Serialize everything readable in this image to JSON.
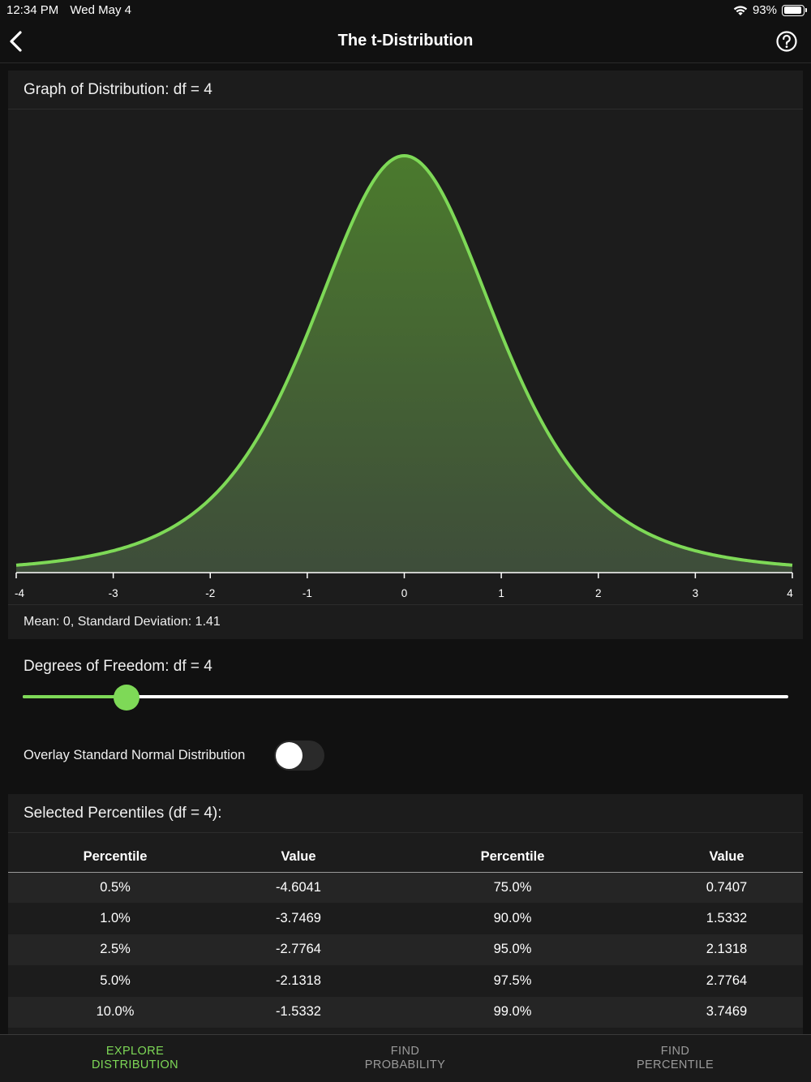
{
  "status_bar": {
    "time": "12:34 PM",
    "date": "Wed May 4",
    "battery_text": "93%",
    "battery_level": 0.93,
    "wifi_icon": "wifi-icon"
  },
  "nav": {
    "title": "The t-Distribution",
    "back_icon": "chevron-left-icon",
    "help_icon": "question-circle-icon"
  },
  "graph": {
    "header": "Graph of Distribution: df = 4",
    "footer": "Mean: 0, Standard Deviation: 1.41"
  },
  "chart_data": {
    "type": "area",
    "distribution": "t",
    "df": 4,
    "xlim": [
      -4,
      4
    ],
    "x_ticks": [
      "-4",
      "-3",
      "-2",
      "-1",
      "0",
      "1",
      "2",
      "3",
      "4"
    ],
    "line_color": "#7ed957",
    "fill_color": "#4a7a30"
  },
  "df_control": {
    "label": "Degrees of Freedom: df = 4",
    "slider_fraction": 0.136
  },
  "overlay": {
    "label": "Overlay Standard Normal Distribution",
    "on": false
  },
  "percentiles": {
    "header": "Selected Percentiles (df = 4):",
    "columns": [
      "Percentile",
      "Value",
      "Percentile",
      "Value"
    ],
    "rows": [
      [
        "0.5%",
        "-4.6041",
        "75.0%",
        "0.7407"
      ],
      [
        "1.0%",
        "-3.7469",
        "90.0%",
        "1.5332"
      ],
      [
        "2.5%",
        "-2.7764",
        "95.0%",
        "2.1318"
      ],
      [
        "5.0%",
        "-2.1318",
        "97.5%",
        "2.7764"
      ],
      [
        "10.0%",
        "-1.5332",
        "99.0%",
        "3.7469"
      ]
    ]
  },
  "tabs": [
    {
      "line1": "EXPLORE",
      "line2": "DISTRIBUTION",
      "active": true
    },
    {
      "line1": "FIND",
      "line2": "PROBABILITY",
      "active": false
    },
    {
      "line1": "FIND",
      "line2": "PERCENTILE",
      "active": false
    }
  ],
  "colors": {
    "accent": "#7ed957",
    "background": "#111111",
    "card": "#1c1c1c"
  }
}
